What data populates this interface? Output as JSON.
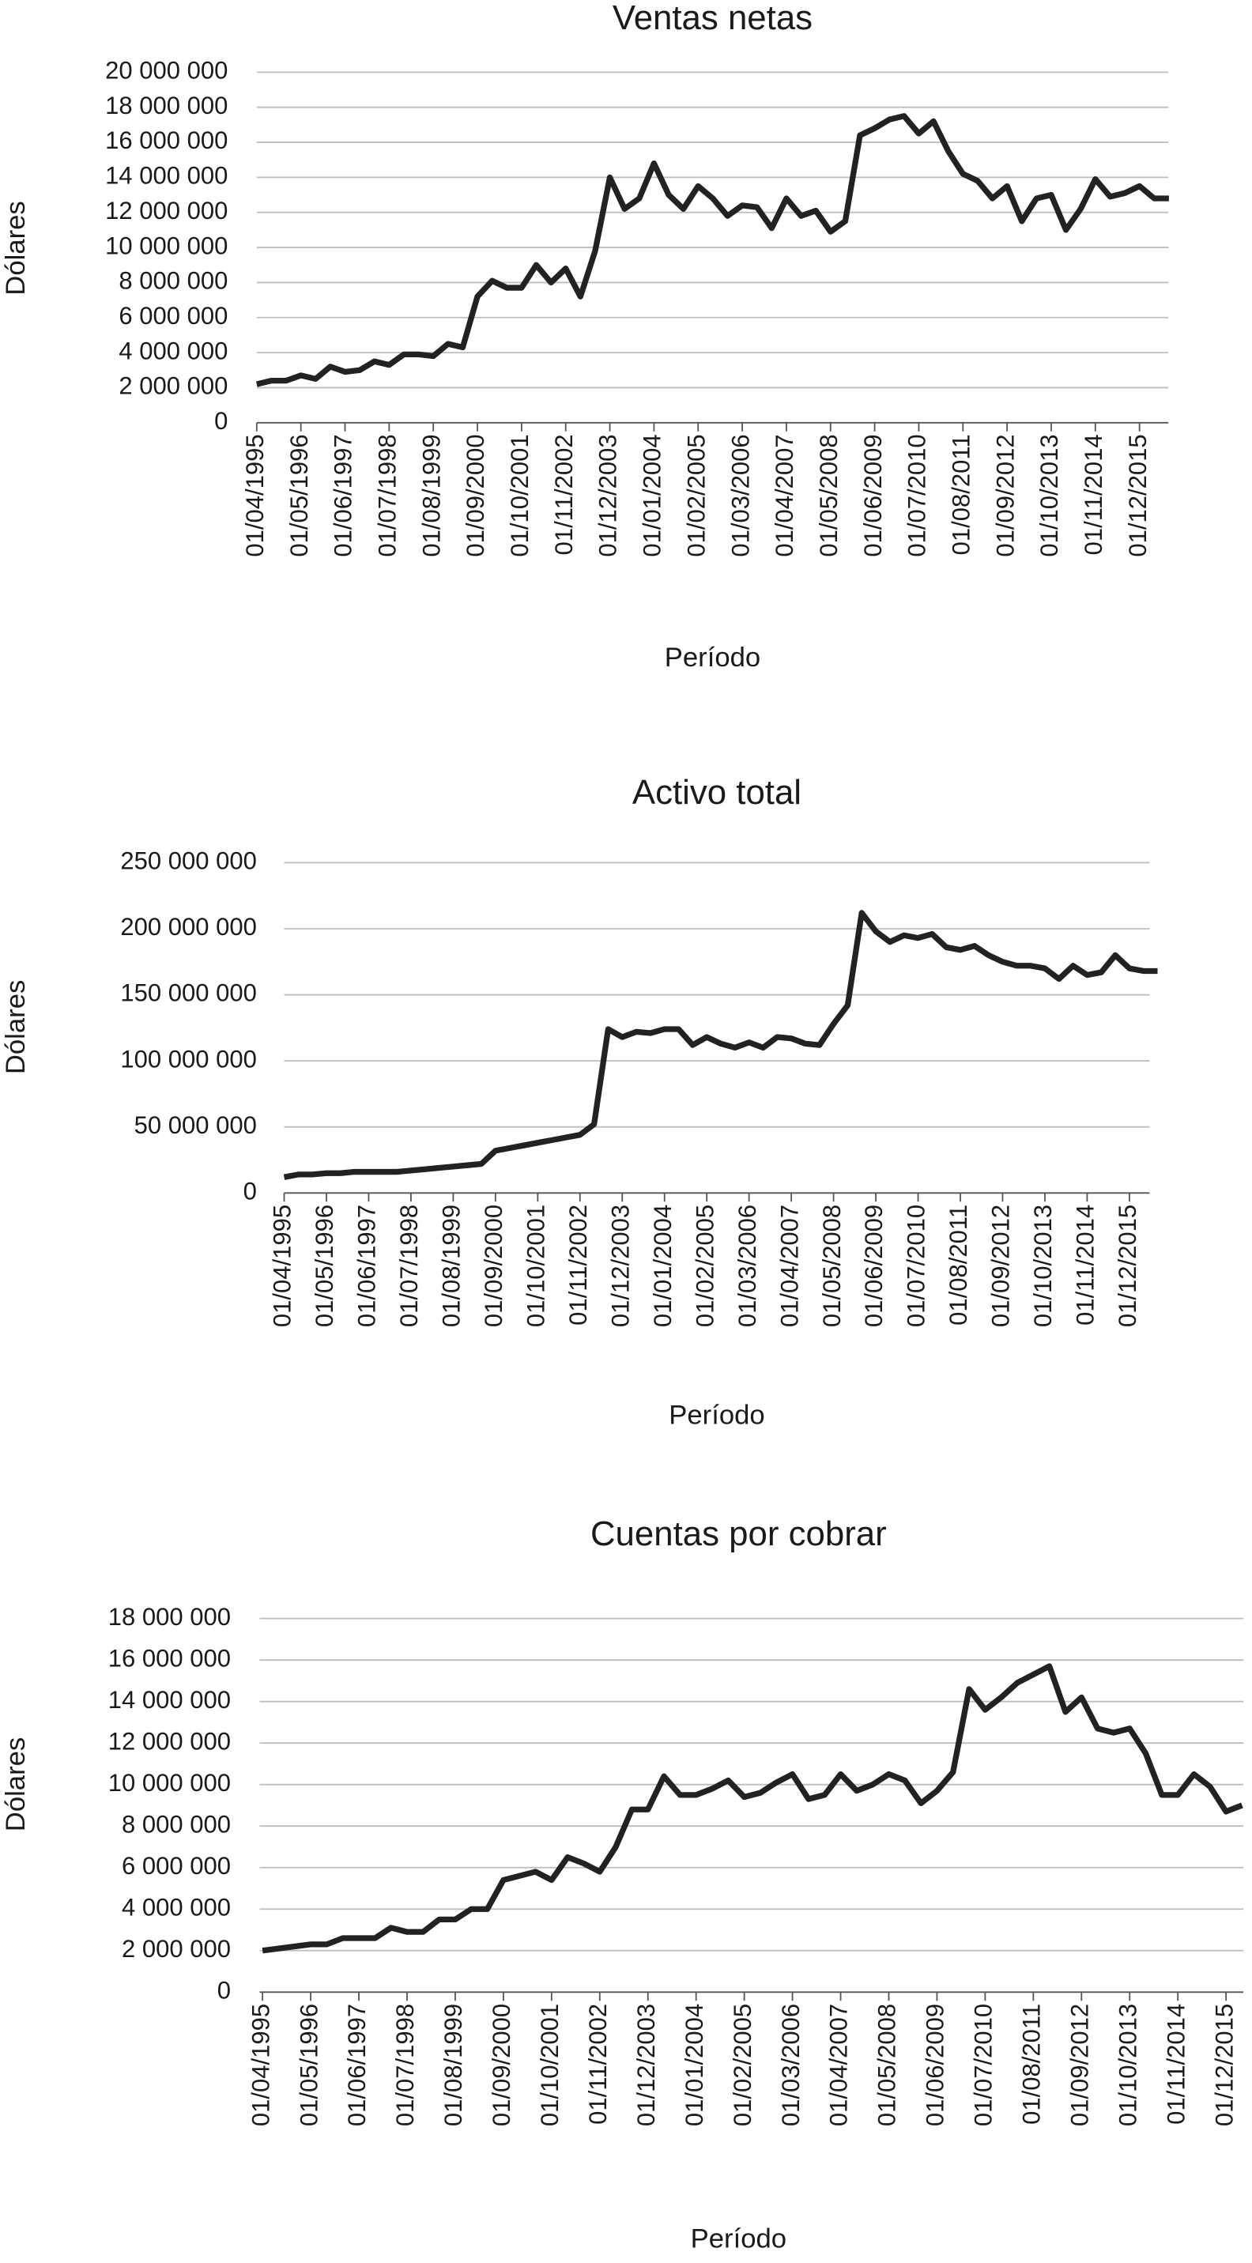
{
  "chart_data": [
    {
      "type": "line",
      "title": "Ventas netas",
      "x_label": "Período",
      "y_label": "Dólares",
      "categories": [
        "01/04/1995",
        null,
        null,
        "01/05/1996",
        null,
        null,
        "01/06/1997",
        null,
        null,
        "01/07/1998",
        null,
        null,
        "01/08/1999",
        null,
        null,
        "01/09/2000",
        null,
        null,
        "01/10/2001",
        null,
        null,
        "01/11/2002",
        null,
        null,
        "01/12/2003",
        null,
        null,
        "01/01/2004",
        null,
        null,
        "01/02/2005",
        null,
        null,
        "01/03/2006",
        null,
        null,
        "01/04/2007",
        null,
        null,
        "01/05/2008",
        null,
        null,
        "01/06/2009",
        null,
        null,
        "01/07/2010",
        null,
        null,
        "01/08/2011",
        null,
        null,
        "01/09/2012",
        null,
        null,
        "01/10/2013",
        null,
        null,
        "01/11/2014",
        null,
        null,
        "01/12/2015",
        null,
        null
      ],
      "series": [
        {
          "name": "Ventas netas",
          "color": "#222222",
          "values": [
            2200000,
            2400000,
            2400000,
            2700000,
            2500000,
            3200000,
            2900000,
            3000000,
            3500000,
            3300000,
            3900000,
            3900000,
            3800000,
            4500000,
            4300000,
            7200000,
            8100000,
            7700000,
            7700000,
            9000000,
            8000000,
            8800000,
            7200000,
            9800000,
            14000000,
            12200000,
            12800000,
            14800000,
            13000000,
            12200000,
            13500000,
            12800000,
            11800000,
            12400000,
            12300000,
            11100000,
            12800000,
            11800000,
            12100000,
            10900000,
            11500000,
            16400000,
            16800000,
            17300000,
            17500000,
            16500000,
            17200000,
            15500000,
            14200000,
            13800000,
            12800000,
            13500000,
            11500000,
            12800000,
            13000000,
            11000000,
            12200000,
            13900000,
            12900000,
            13100000,
            13500000,
            12800000,
            12800000
          ]
        }
      ],
      "ylim": [
        0,
        20000000
      ],
      "yticks": [
        0,
        {
          "value": 2000000,
          "label": "2 000 000"
        },
        {
          "value": 4000000,
          "label": "4 000 000"
        },
        {
          "value": 6000000,
          "label": "6 000 000"
        },
        {
          "value": 8000000,
          "label": "8 000 000"
        },
        {
          "value": 10000000,
          "label": "10 000 000"
        },
        {
          "value": 12000000,
          "label": "12 000 000"
        },
        {
          "value": 14000000,
          "label": "14 000 000"
        },
        {
          "value": 16000000,
          "label": "16 000 000"
        },
        {
          "value": 18000000,
          "label": "18 000 000"
        },
        {
          "value": 20000000,
          "label": "20 000 000"
        }
      ],
      "grid": true
    },
    {
      "type": "line",
      "title": "Activo total",
      "x_label": "Período",
      "y_label": "Dólares",
      "categories": [
        "01/04/1995",
        null,
        null,
        "01/05/1996",
        null,
        null,
        "01/06/1997",
        null,
        null,
        "01/07/1998",
        null,
        null,
        "01/08/1999",
        null,
        null,
        "01/09/2000",
        null,
        null,
        "01/10/2001",
        null,
        null,
        "01/11/2002",
        null,
        null,
        "01/12/2003",
        null,
        null,
        "01/01/2004",
        null,
        null,
        "01/02/2005",
        null,
        null,
        "01/03/2006",
        null,
        null,
        "01/04/2007",
        null,
        null,
        "01/05/2008",
        null,
        null,
        "01/06/2009",
        null,
        null,
        "01/07/2010",
        null,
        null,
        "01/08/2011",
        null,
        null,
        "01/09/2012",
        null,
        null,
        "01/10/2013",
        null,
        null,
        "01/11/2014",
        null,
        null,
        "01/12/2015",
        null,
        null
      ],
      "series": [
        {
          "name": "Activo total",
          "color": "#222222",
          "values": [
            12000000,
            14000000,
            14000000,
            15000000,
            15000000,
            16000000,
            16000000,
            16000000,
            16000000,
            17000000,
            18000000,
            19000000,
            20000000,
            21000000,
            22000000,
            32000000,
            34000000,
            36000000,
            38000000,
            40000000,
            42000000,
            44000000,
            52000000,
            124000000,
            118000000,
            122000000,
            121000000,
            124000000,
            124000000,
            112000000,
            118000000,
            113000000,
            110000000,
            114000000,
            110000000,
            118000000,
            117000000,
            113000000,
            112000000,
            128000000,
            142000000,
            212000000,
            198000000,
            190000000,
            195000000,
            193000000,
            196000000,
            186000000,
            184000000,
            187000000,
            180000000,
            175000000,
            172000000,
            172000000,
            170000000,
            162000000,
            172000000,
            165000000,
            167000000,
            180000000,
            170000000,
            168000000,
            168000000
          ]
        }
      ],
      "ylim": [
        0,
        250000000
      ],
      "yticks": [
        0,
        {
          "value": 50000000,
          "label": "50 000 000"
        },
        {
          "value": 100000000,
          "label": "100 000 000"
        },
        {
          "value": 150000000,
          "label": "150 000 000"
        },
        {
          "value": 200000000,
          "label": "200 000 000"
        },
        {
          "value": 250000000,
          "label": "250 000 000"
        }
      ],
      "grid": true
    },
    {
      "type": "line",
      "title": "Cuentas por cobrar",
      "x_label": "Período",
      "y_label": "Dólares",
      "categories": [
        "01/04/1995",
        null,
        null,
        "01/05/1996",
        null,
        null,
        "01/06/1997",
        null,
        null,
        "01/07/1998",
        null,
        null,
        "01/08/1999",
        null,
        null,
        "01/09/2000",
        null,
        null,
        "01/10/2001",
        null,
        null,
        "01/11/2002",
        null,
        null,
        "01/12/2003",
        null,
        null,
        "01/01/2004",
        null,
        null,
        "01/02/2005",
        null,
        null,
        "01/03/2006",
        null,
        null,
        "01/04/2007",
        null,
        null,
        "01/05/2008",
        null,
        null,
        "01/06/2009",
        null,
        null,
        "01/07/2010",
        null,
        null,
        "01/08/2011",
        null,
        null,
        "01/09/2012",
        null,
        null,
        "01/10/2013",
        null,
        null,
        "01/11/2014",
        null,
        null,
        "01/12/2015",
        null
      ],
      "series": [
        {
          "name": "Cuentas por cobrar",
          "color": "#222222",
          "values": [
            2000000,
            2100000,
            2200000,
            2300000,
            2300000,
            2600000,
            2600000,
            2600000,
            3100000,
            2900000,
            2900000,
            3500000,
            3500000,
            4000000,
            4000000,
            5400000,
            5600000,
            5800000,
            5400000,
            6500000,
            6200000,
            5800000,
            7000000,
            8800000,
            8800000,
            10400000,
            9500000,
            9500000,
            9800000,
            10200000,
            9400000,
            9600000,
            10100000,
            10500000,
            9300000,
            9500000,
            10500000,
            9700000,
            10000000,
            10500000,
            10200000,
            9100000,
            9700000,
            10600000,
            14600000,
            13600000,
            14200000,
            14900000,
            15300000,
            15700000,
            13500000,
            14200000,
            12700000,
            12500000,
            12700000,
            11500000,
            9500000,
            9500000,
            10500000,
            9900000,
            8700000,
            9000000
          ]
        }
      ],
      "ylim": [
        0,
        18000000
      ],
      "yticks": [
        0,
        {
          "value": 2000000,
          "label": "2 000 000"
        },
        {
          "value": 4000000,
          "label": "4 000 000"
        },
        {
          "value": 6000000,
          "label": "6 000 000"
        },
        {
          "value": 8000000,
          "label": "8 000 000"
        },
        {
          "value": 10000000,
          "label": "10 000 000"
        },
        {
          "value": 12000000,
          "label": "12 000 000"
        },
        {
          "value": 14000000,
          "label": "14 000 000"
        },
        {
          "value": 16000000,
          "label": "16 000 000"
        },
        {
          "value": 18000000,
          "label": "18 000 000"
        }
      ],
      "grid": true
    }
  ]
}
